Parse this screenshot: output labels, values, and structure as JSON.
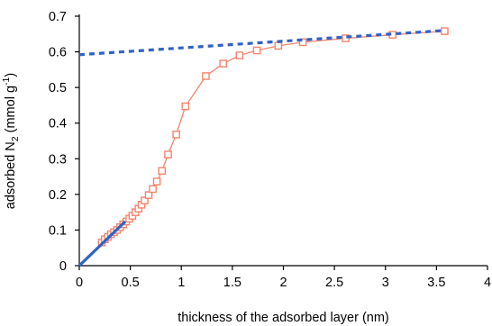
{
  "chart_data": {
    "type": "scatter",
    "xlabel": "thickness of the adsorbed layer (nm)",
    "ylabel": {
      "main": "adsorbed N",
      "sub": "2",
      "units": " (mmol g",
      "sup": "-1",
      "close": ")"
    },
    "xlim": [
      0,
      4
    ],
    "ylim": [
      0,
      0.7
    ],
    "xticks": [
      "0",
      "0.5",
      "1",
      "1.5",
      "2",
      "2.5",
      "3",
      "3.5",
      "4"
    ],
    "yticks": [
      "0",
      "0.1",
      "0.2",
      "0.3",
      "0.4",
      "0.5",
      "0.6",
      "0.7"
    ],
    "grid": false,
    "series": [
      {
        "style": "line-markers",
        "color": "#f4846e",
        "marker": "open-square",
        "points": [
          [
            0.22,
            0.065
          ],
          [
            0.25,
            0.074
          ],
          [
            0.28,
            0.081
          ],
          [
            0.31,
            0.088
          ],
          [
            0.34,
            0.094
          ],
          [
            0.37,
            0.1
          ],
          [
            0.4,
            0.108
          ],
          [
            0.43,
            0.116
          ],
          [
            0.46,
            0.124
          ],
          [
            0.49,
            0.132
          ],
          [
            0.52,
            0.14
          ],
          [
            0.55,
            0.15
          ],
          [
            0.58,
            0.16
          ],
          [
            0.61,
            0.171
          ],
          [
            0.64,
            0.183
          ],
          [
            0.68,
            0.198
          ],
          [
            0.72,
            0.215
          ],
          [
            0.76,
            0.236
          ],
          [
            0.81,
            0.266
          ],
          [
            0.87,
            0.312
          ],
          [
            0.95,
            0.368
          ],
          [
            1.04,
            0.447
          ],
          [
            1.24,
            0.532
          ],
          [
            1.41,
            0.567
          ],
          [
            1.57,
            0.59
          ],
          [
            1.74,
            0.604
          ],
          [
            1.95,
            0.617
          ],
          [
            2.19,
            0.627
          ],
          [
            2.61,
            0.638
          ],
          [
            3.07,
            0.648
          ],
          [
            3.58,
            0.658
          ]
        ]
      },
      {
        "style": "dashed-line",
        "color": "#2f62c8",
        "points": [
          [
            0,
            0.592
          ],
          [
            3.58,
            0.66
          ]
        ]
      },
      {
        "style": "solid-line",
        "color": "#2f62c8",
        "points": [
          [
            0,
            0
          ],
          [
            0.45,
            0.124
          ]
        ]
      }
    ]
  }
}
